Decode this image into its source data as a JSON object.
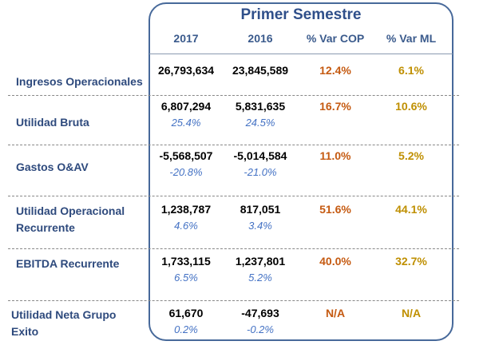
{
  "header": {
    "title": "Primer Semestre",
    "columns": [
      "2017",
      "2016",
      "% Var COP",
      "% Var ML"
    ]
  },
  "rows": [
    {
      "label": "Ingresos Operacionales",
      "v2017": "26,793,634",
      "v2016": "23,845,589",
      "var_cop": "12.4%",
      "var_ml": "6.1%"
    },
    {
      "label": "Utilidad Bruta",
      "v2017": "6,807,294",
      "v2016": "5,831,635",
      "m2017": "25.4%",
      "m2016": "24.5%",
      "var_cop": "16.7%",
      "var_ml": "10.6%"
    },
    {
      "label": "Gastos O&AV",
      "v2017": "-5,568,507",
      "v2016": "-5,014,584",
      "m2017": "-20.8%",
      "m2016": "-21.0%",
      "var_cop": "11.0%",
      "var_ml": "5.2%"
    },
    {
      "label": "Utilidad Operacional",
      "label2": "Recurrente",
      "v2017": "1,238,787",
      "v2016": "817,051",
      "m2017": "4.6%",
      "m2016": "3.4%",
      "var_cop": "51.6%",
      "var_ml": "44.1%"
    },
    {
      "label": "EBITDA Recurrente",
      "v2017": "1,733,115",
      "v2016": "1,237,801",
      "m2017": "6.5%",
      "m2016": "5.2%",
      "var_cop": "40.0%",
      "var_ml": "32.7%"
    },
    {
      "label": "Utilidad Neta Grupo",
      "label2": "Exito",
      "v2017": "61,670",
      "v2016": "-47,693",
      "m2017": "0.2%",
      "m2016": "-0.2%",
      "var_cop": "N/A",
      "var_ml": "N/A"
    }
  ],
  "colors": {
    "border": "#47699A",
    "label": "#2E4A7D",
    "margin": "#4472C4",
    "var_cop": "#C55A11",
    "var_ml": "#BF8F00"
  }
}
